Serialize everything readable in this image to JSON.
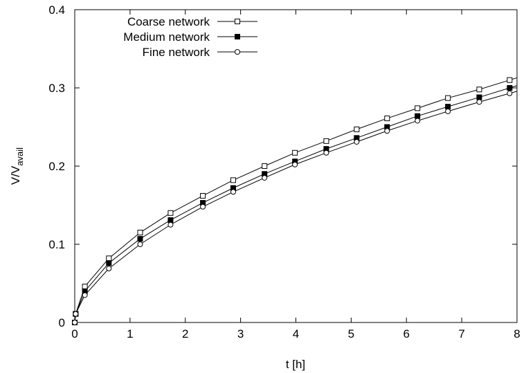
{
  "chart_data": {
    "type": "line",
    "xlabel": "t [h]",
    "ylabel_main": "V/V",
    "ylabel_sub": "avail",
    "xlim": [
      0,
      8
    ],
    "ylim": [
      0,
      0.4
    ],
    "xticks": [
      0,
      1,
      2,
      3,
      4,
      5,
      6,
      7,
      8
    ],
    "yticks": [
      0,
      0.1,
      0.2,
      0.3,
      0.4
    ],
    "xtick_labels": [
      "0",
      "1",
      "2",
      "3",
      "4",
      "5",
      "6",
      "7",
      "8"
    ],
    "ytick_labels": [
      "0",
      "0.1",
      "0.2",
      "0.3",
      "0.4"
    ],
    "grid": false,
    "legend_position": "top-left",
    "series": [
      {
        "name": "Coarse network",
        "marker": "open-square",
        "x": [
          0,
          0.0167,
          0.183,
          0.617,
          1.183,
          1.733,
          2.317,
          2.867,
          3.433,
          3.983,
          4.55,
          5.1,
          5.65,
          6.2,
          6.75,
          7.317,
          7.867
        ],
        "y": [
          0,
          0.011,
          0.046,
          0.082,
          0.115,
          0.14,
          0.162,
          0.182,
          0.2,
          0.217,
          0.232,
          0.247,
          0.261,
          0.274,
          0.287,
          0.298,
          0.31
        ]
      },
      {
        "name": "Medium network",
        "marker": "filled-square",
        "x": [
          0,
          0.0167,
          0.183,
          0.617,
          1.183,
          1.733,
          2.317,
          2.867,
          3.433,
          3.983,
          4.55,
          5.1,
          5.65,
          6.2,
          6.75,
          7.317,
          7.867
        ],
        "y": [
          0,
          0.011,
          0.04,
          0.076,
          0.107,
          0.131,
          0.153,
          0.172,
          0.19,
          0.206,
          0.222,
          0.236,
          0.25,
          0.264,
          0.276,
          0.288,
          0.3
        ]
      },
      {
        "name": "Fine network",
        "marker": "open-circle",
        "x": [
          0,
          0.0167,
          0.183,
          0.617,
          1.183,
          1.733,
          2.317,
          2.867,
          3.433,
          3.983,
          4.55,
          5.1,
          5.65,
          6.2,
          6.75,
          7.317,
          7.867
        ],
        "y": [
          0,
          0.011,
          0.035,
          0.069,
          0.1,
          0.125,
          0.148,
          0.167,
          0.185,
          0.202,
          0.217,
          0.231,
          0.245,
          0.258,
          0.27,
          0.282,
          0.293
        ]
      }
    ]
  }
}
